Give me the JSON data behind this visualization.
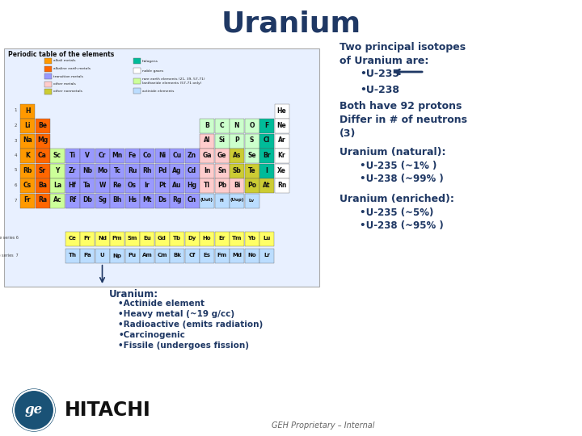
{
  "title": "Uranium",
  "title_color": "#1F3864",
  "title_fontsize": 26,
  "bg_color": "#FFFFFF",
  "right_panel": {
    "isotopes_header": "Two principal isotopes\nof Uranium are:",
    "isotope1": "•U-235",
    "isotope2": "•U-238",
    "both_protons": "Both have 92 protons",
    "differ": "Differ in # of neutrons\n(3)",
    "natural_header": "Uranium (natural):",
    "natural1": "•U-235 (~1% )",
    "natural2": "•U-238 (~99% )",
    "enriched_header": "Uranium (enriched):",
    "enriched1": "•U-235 (~5%)",
    "enriched2": "•U-238 (~95% )"
  },
  "uranium_label": "Uranium:",
  "uranium_bullets": [
    "•Actinide element",
    "•Heavy metal (~19 g/cc)",
    "•Radioactive (emits radiation)",
    "•Carcinogenic",
    "•Fissile (undergoes fission)"
  ],
  "footer": "GEH Proprietary – Internal",
  "text_color": "#1F3864",
  "arrow_color": "#1F3864",
  "pt_title": "Periodic table of the elements",
  "colors": {
    "alkali": "#FF9900",
    "alkaline": "#FF6600",
    "transition": "#9999FF",
    "other_metals": "#FFCCCC",
    "metalloids": "#CCCC00",
    "nonmetals": "#CCFFCC",
    "halogens": "#00CC99",
    "noble": "#FFFFFF",
    "lanthanide": "#FFFF00",
    "actinide": "#AADDFF",
    "rare_earth": "#CCFF99",
    "border": "#888888"
  }
}
